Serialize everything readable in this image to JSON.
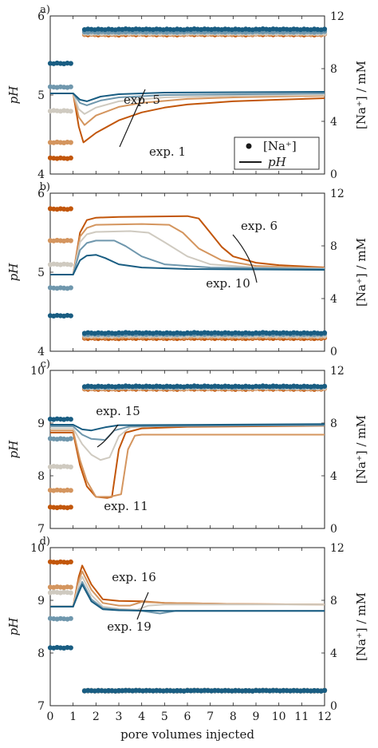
{
  "figure": {
    "xlabel": "pore volumes injected",
    "x_ticks": [
      "0",
      "1",
      "2",
      "3",
      "4",
      "5",
      "6",
      "7",
      "8",
      "9",
      "10",
      "11",
      "12"
    ],
    "legend": {
      "marker_label": "[Na⁺]",
      "line_label": "pH"
    }
  },
  "colors": [
    "#c2560a",
    "#d4955e",
    "#cfcac0",
    "#6f97ad",
    "#195d82"
  ],
  "chart_data": [
    {
      "panel": "a)",
      "type": "line",
      "ylabel_left": "pH",
      "ylabel_right": "[Na⁺] / mM",
      "ylim_left": [
        4,
        6
      ],
      "ylim_right": [
        0,
        12
      ],
      "yticks_left": [
        "4",
        "5",
        "6"
      ],
      "yticks_right": [
        "0",
        "4",
        "8",
        "12"
      ],
      "annotations": [
        "exp. 5",
        "exp. 1"
      ],
      "na_initial_mM": [
        1.2,
        2.4,
        4.8,
        6.6,
        8.4
      ],
      "na_injected_mM": [
        10.6,
        10.65,
        10.7,
        10.8,
        11.0
      ],
      "pH_series": [
        {
          "points": [
            [
              0,
              5.02
            ],
            [
              1,
              5.02
            ],
            [
              1.25,
              4.6
            ],
            [
              1.45,
              4.4
            ],
            [
              2,
              4.52
            ],
            [
              3,
              4.68
            ],
            [
              4,
              4.78
            ],
            [
              5,
              4.84
            ],
            [
              6,
              4.88
            ],
            [
              8,
              4.92
            ],
            [
              10,
              4.94
            ],
            [
              12,
              4.96
            ]
          ]
        },
        {
          "points": [
            [
              0,
              5.02
            ],
            [
              1,
              5.02
            ],
            [
              1.25,
              4.72
            ],
            [
              1.5,
              4.62
            ],
            [
              2,
              4.74
            ],
            [
              3,
              4.85
            ],
            [
              4,
              4.9
            ],
            [
              6,
              4.95
            ],
            [
              8,
              4.97
            ],
            [
              12,
              4.99
            ]
          ]
        },
        {
          "points": [
            [
              0,
              5.02
            ],
            [
              1,
              5.02
            ],
            [
              1.25,
              4.82
            ],
            [
              1.5,
              4.76
            ],
            [
              2,
              4.84
            ],
            [
              3,
              4.92
            ],
            [
              5,
              4.97
            ],
            [
              8,
              4.99
            ],
            [
              12,
              5.0
            ]
          ]
        },
        {
          "points": [
            [
              0,
              5.02
            ],
            [
              1,
              5.02
            ],
            [
              1.3,
              4.9
            ],
            [
              1.6,
              4.87
            ],
            [
              2.2,
              4.93
            ],
            [
              3,
              4.97
            ],
            [
              5,
              5.0
            ],
            [
              12,
              5.02
            ]
          ]
        },
        {
          "points": [
            [
              0,
              5.02
            ],
            [
              1,
              5.02
            ],
            [
              1.3,
              4.94
            ],
            [
              1.6,
              4.92
            ],
            [
              2.2,
              4.98
            ],
            [
              3,
              5.01
            ],
            [
              5,
              5.03
            ],
            [
              12,
              5.04
            ]
          ]
        }
      ]
    },
    {
      "panel": "b)",
      "type": "line",
      "ylabel_left": "pH",
      "ylabel_right": "[Na⁺] / mM",
      "ylim_left": [
        4,
        6
      ],
      "ylim_right": [
        0,
        12
      ],
      "yticks_left": [
        "4",
        "5",
        "6"
      ],
      "yticks_right": [
        "0",
        "4",
        "8",
        "12"
      ],
      "annotations": [
        "exp. 6",
        "exp. 10"
      ],
      "na_initial_mM": [
        10.8,
        8.4,
        6.6,
        4.8,
        2.7
      ],
      "na_injected_mM": [
        1.0,
        1.1,
        1.2,
        1.3,
        1.4
      ],
      "pH_series": [
        {
          "points": [
            [
              0,
              4.97
            ],
            [
              1,
              4.97
            ],
            [
              1.3,
              5.5
            ],
            [
              1.6,
              5.66
            ],
            [
              2,
              5.69
            ],
            [
              3,
              5.7
            ],
            [
              6,
              5.71
            ],
            [
              6.5,
              5.68
            ],
            [
              7,
              5.5
            ],
            [
              7.5,
              5.32
            ],
            [
              8,
              5.2
            ],
            [
              9,
              5.12
            ],
            [
              10,
              5.09
            ],
            [
              12,
              5.06
            ]
          ]
        },
        {
          "points": [
            [
              0,
              4.97
            ],
            [
              1,
              4.97
            ],
            [
              1.3,
              5.45
            ],
            [
              1.6,
              5.56
            ],
            [
              2,
              5.6
            ],
            [
              4,
              5.61
            ],
            [
              5.2,
              5.6
            ],
            [
              5.8,
              5.5
            ],
            [
              6.5,
              5.3
            ],
            [
              7.5,
              5.15
            ],
            [
              9,
              5.08
            ],
            [
              12,
              5.05
            ]
          ]
        },
        {
          "points": [
            [
              0,
              4.97
            ],
            [
              1,
              4.97
            ],
            [
              1.3,
              5.38
            ],
            [
              1.6,
              5.48
            ],
            [
              2,
              5.51
            ],
            [
              3.5,
              5.52
            ],
            [
              4.3,
              5.5
            ],
            [
              5,
              5.38
            ],
            [
              6,
              5.2
            ],
            [
              7,
              5.1
            ],
            [
              9,
              5.06
            ],
            [
              12,
              5.05
            ]
          ]
        },
        {
          "points": [
            [
              0,
              4.97
            ],
            [
              1,
              4.97
            ],
            [
              1.3,
              5.28
            ],
            [
              1.6,
              5.37
            ],
            [
              2,
              5.4
            ],
            [
              2.8,
              5.4
            ],
            [
              3.3,
              5.33
            ],
            [
              4,
              5.2
            ],
            [
              5,
              5.1
            ],
            [
              7,
              5.06
            ],
            [
              12,
              5.04
            ]
          ]
        },
        {
          "points": [
            [
              0,
              4.97
            ],
            [
              1,
              4.97
            ],
            [
              1.3,
              5.15
            ],
            [
              1.6,
              5.21
            ],
            [
              2,
              5.22
            ],
            [
              2.4,
              5.18
            ],
            [
              3,
              5.1
            ],
            [
              4,
              5.06
            ],
            [
              6,
              5.04
            ],
            [
              12,
              5.03
            ]
          ]
        }
      ]
    },
    {
      "panel": "c)",
      "type": "line",
      "ylabel_left": "pH",
      "ylabel_right": "[Na⁺] / mM",
      "ylim_left": [
        7,
        10
      ],
      "ylim_right": [
        0,
        12
      ],
      "yticks_left": [
        "7",
        "8",
        "9",
        "10"
      ],
      "yticks_right": [
        "0",
        "4",
        "8",
        "12"
      ],
      "annotations": [
        "exp. 15",
        "exp. 11"
      ],
      "na_initial_mM": [
        1.6,
        2.9,
        4.7,
        6.8,
        8.3
      ],
      "na_injected_mM": [
        10.6,
        10.65,
        10.7,
        10.75,
        10.8
      ],
      "pH_series": [
        {
          "points": [
            [
              0,
              8.82
            ],
            [
              1,
              8.82
            ],
            [
              1.3,
              8.2
            ],
            [
              1.6,
              7.8
            ],
            [
              2,
              7.6
            ],
            [
              2.5,
              7.58
            ],
            [
              2.7,
              7.6
            ],
            [
              3,
              8.5
            ],
            [
              3.3,
              8.82
            ],
            [
              4,
              8.9
            ],
            [
              6,
              8.93
            ],
            [
              12,
              8.95
            ]
          ]
        },
        {
          "points": [
            [
              0,
              8.86
            ],
            [
              1,
              8.86
            ],
            [
              1.3,
              8.3
            ],
            [
              1.6,
              7.9
            ],
            [
              2,
              7.6
            ],
            [
              2.6,
              7.6
            ],
            [
              3.1,
              7.65
            ],
            [
              3.4,
              8.5
            ],
            [
              3.7,
              8.76
            ],
            [
              4,
              8.78
            ],
            [
              12,
              8.78
            ]
          ]
        },
        {
          "points": [
            [
              0,
              8.9
            ],
            [
              1,
              8.9
            ],
            [
              1.4,
              8.6
            ],
            [
              1.8,
              8.4
            ],
            [
              2.2,
              8.3
            ],
            [
              2.6,
              8.35
            ],
            [
              3,
              8.75
            ],
            [
              3.5,
              8.92
            ],
            [
              5,
              8.95
            ],
            [
              12,
              8.96
            ]
          ]
        },
        {
          "points": [
            [
              0,
              8.94
            ],
            [
              1,
              8.94
            ],
            [
              1.4,
              8.78
            ],
            [
              1.8,
              8.7
            ],
            [
              2.4,
              8.68
            ],
            [
              2.8,
              8.86
            ],
            [
              3.5,
              8.94
            ],
            [
              12,
              8.96
            ]
          ]
        },
        {
          "points": [
            [
              0,
              8.97
            ],
            [
              1,
              8.97
            ],
            [
              1.4,
              8.88
            ],
            [
              1.8,
              8.86
            ],
            [
              2.4,
              8.92
            ],
            [
              3,
              8.96
            ],
            [
              12,
              8.98
            ]
          ]
        }
      ]
    },
    {
      "panel": "d)",
      "type": "line",
      "ylabel_left": "pH",
      "ylabel_right": "[Na⁺] / mM",
      "ylim_left": [
        7,
        10
      ],
      "ylim_right": [
        0,
        12
      ],
      "yticks_left": [
        "7",
        "8",
        "9",
        "10"
      ],
      "yticks_right": [
        "0",
        "4",
        "8",
        "12"
      ],
      "annotations": [
        "exp. 16",
        "exp. 19"
      ],
      "na_initial_mM": [
        10.9,
        9.0,
        8.6,
        6.6,
        4.4
      ],
      "na_injected_mM": [
        1.15,
        1.15,
        1.15,
        1.15,
        1.15
      ],
      "pH_series": [
        {
          "points": [
            [
              0,
              8.88
            ],
            [
              1,
              8.88
            ],
            [
              1.25,
              9.45
            ],
            [
              1.4,
              9.66
            ],
            [
              1.8,
              9.3
            ],
            [
              2.3,
              9.02
            ],
            [
              3,
              8.99
            ],
            [
              4,
              8.98
            ],
            [
              5,
              8.95
            ],
            [
              8,
              8.93
            ],
            [
              12,
              8.92
            ]
          ]
        },
        {
          "points": [
            [
              0,
              8.88
            ],
            [
              1,
              8.88
            ],
            [
              1.25,
              9.38
            ],
            [
              1.4,
              9.55
            ],
            [
              1.8,
              9.2
            ],
            [
              2.3,
              8.95
            ],
            [
              3,
              8.9
            ],
            [
              3.5,
              8.9
            ],
            [
              4,
              8.97
            ],
            [
              5,
              8.95
            ],
            [
              8,
              8.93
            ],
            [
              12,
              8.92
            ]
          ]
        },
        {
          "points": [
            [
              0,
              8.88
            ],
            [
              1,
              8.88
            ],
            [
              1.25,
              9.3
            ],
            [
              1.4,
              9.45
            ],
            [
              1.8,
              9.1
            ],
            [
              2.3,
              8.88
            ],
            [
              3,
              8.84
            ],
            [
              3.8,
              8.82
            ],
            [
              4.3,
              8.9
            ],
            [
              5,
              8.92
            ],
            [
              12,
              8.92
            ]
          ]
        },
        {
          "points": [
            [
              0,
              8.88
            ],
            [
              1,
              8.88
            ],
            [
              1.25,
              9.2
            ],
            [
              1.4,
              9.35
            ],
            [
              1.8,
              9.02
            ],
            [
              2.3,
              8.85
            ],
            [
              3,
              8.82
            ],
            [
              4,
              8.8
            ],
            [
              4.8,
              8.75
            ],
            [
              5.5,
              8.8
            ],
            [
              12,
              8.8
            ]
          ]
        },
        {
          "points": [
            [
              0,
              8.88
            ],
            [
              1,
              8.88
            ],
            [
              1.25,
              9.15
            ],
            [
              1.4,
              9.3
            ],
            [
              1.8,
              8.98
            ],
            [
              2.3,
              8.83
            ],
            [
              3,
              8.81
            ],
            [
              5,
              8.8
            ],
            [
              12,
              8.8
            ]
          ]
        }
      ]
    }
  ]
}
